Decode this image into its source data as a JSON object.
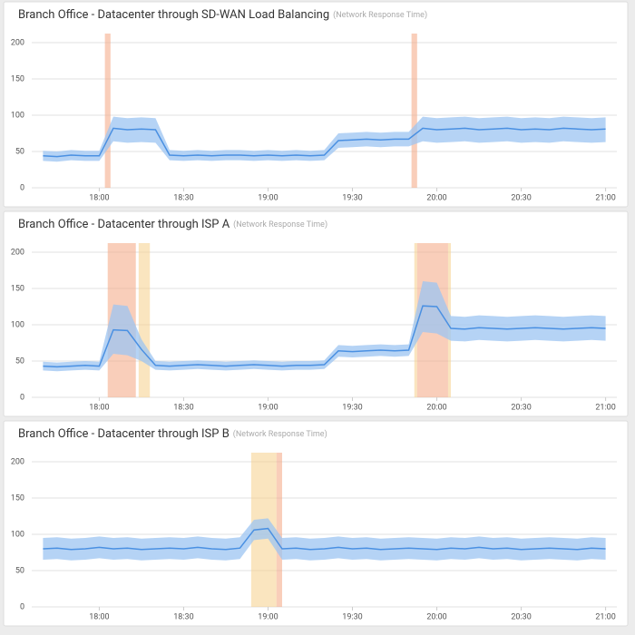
{
  "chart_data": [
    {
      "type": "line",
      "title": "Branch Office - Datacenter through SD-WAN Load Balancing",
      "subtitle": "(Network Response Time)",
      "x": [
        "17:40",
        "17:45",
        "17:50",
        "17:55",
        "18:00",
        "18:05",
        "18:10",
        "18:15",
        "18:20",
        "18:25",
        "18:30",
        "18:35",
        "18:40",
        "18:45",
        "18:50",
        "18:55",
        "19:00",
        "19:05",
        "19:10",
        "19:15",
        "19:20",
        "19:25",
        "19:30",
        "19:35",
        "19:40",
        "19:45",
        "19:50",
        "19:55",
        "20:00",
        "20:05",
        "20:10",
        "20:15",
        "20:20",
        "20:25",
        "20:30",
        "20:35",
        "20:40",
        "20:45",
        "20:50",
        "20:55",
        "21:00"
      ],
      "values": [
        44,
        43,
        45,
        44,
        44,
        82,
        80,
        81,
        80,
        45,
        44,
        45,
        44,
        45,
        45,
        44,
        45,
        44,
        45,
        44,
        45,
        65,
        66,
        67,
        66,
        67,
        67,
        82,
        80,
        81,
        82,
        80,
        81,
        82,
        80,
        81,
        80,
        82,
        81,
        80,
        81
      ],
      "band_low": [
        37,
        36,
        38,
        37,
        37,
        64,
        62,
        63,
        62,
        38,
        37,
        38,
        37,
        38,
        38,
        37,
        38,
        37,
        38,
        37,
        38,
        55,
        56,
        57,
        56,
        57,
        57,
        64,
        62,
        63,
        64,
        62,
        63,
        64,
        62,
        63,
        62,
        64,
        63,
        62,
        63
      ],
      "band_high": [
        51,
        50,
        52,
        51,
        51,
        98,
        96,
        97,
        96,
        52,
        51,
        52,
        51,
        52,
        52,
        51,
        52,
        51,
        52,
        51,
        52,
        75,
        76,
        77,
        76,
        77,
        77,
        98,
        96,
        97,
        98,
        96,
        97,
        98,
        96,
        97,
        96,
        98,
        97,
        96,
        97
      ],
      "color": "#4a90e2",
      "band_color": "#9cc4f2",
      "regions": [
        {
          "start": "18:02",
          "end": "18:04",
          "color": "#f4a582"
        },
        {
          "start": "19:51",
          "end": "19:53",
          "color": "#f4a582"
        }
      ],
      "xlim": [
        "17:36",
        "21:04"
      ],
      "xticks": [
        "18:00",
        "18:30",
        "19:00",
        "19:30",
        "20:00",
        "20:30",
        "21:00"
      ],
      "ylim": [
        0,
        200
      ],
      "yticks": [
        0,
        50,
        100,
        150,
        200
      ],
      "grid": true
    },
    {
      "type": "line",
      "title": "Branch Office - Datacenter through ISP A",
      "subtitle": "(Network Response Time)",
      "x": [
        "17:40",
        "17:45",
        "17:50",
        "17:55",
        "18:00",
        "18:05",
        "18:10",
        "18:15",
        "18:20",
        "18:25",
        "18:30",
        "18:35",
        "18:40",
        "18:45",
        "18:50",
        "18:55",
        "19:00",
        "19:05",
        "19:10",
        "19:15",
        "19:20",
        "19:25",
        "19:30",
        "19:35",
        "19:40",
        "19:45",
        "19:50",
        "19:55",
        "20:00",
        "20:05",
        "20:10",
        "20:15",
        "20:20",
        "20:25",
        "20:30",
        "20:35",
        "20:40",
        "20:45",
        "20:50",
        "20:55",
        "21:00"
      ],
      "values": [
        43,
        42,
        43,
        44,
        43,
        93,
        92,
        66,
        44,
        43,
        44,
        45,
        44,
        43,
        44,
        45,
        44,
        43,
        44,
        44,
        45,
        64,
        63,
        64,
        65,
        64,
        65,
        126,
        125,
        95,
        94,
        96,
        95,
        94,
        95,
        96,
        95,
        94,
        95,
        96,
        95
      ],
      "band_low": [
        37,
        36,
        37,
        38,
        37,
        60,
        58,
        50,
        38,
        37,
        38,
        39,
        38,
        37,
        38,
        39,
        38,
        37,
        38,
        38,
        39,
        56,
        55,
        56,
        57,
        56,
        57,
        90,
        88,
        78,
        77,
        79,
        78,
        77,
        78,
        79,
        78,
        77,
        78,
        79,
        78
      ],
      "band_high": [
        49,
        48,
        49,
        50,
        49,
        128,
        126,
        80,
        50,
        49,
        50,
        51,
        50,
        49,
        50,
        51,
        50,
        49,
        50,
        50,
        51,
        72,
        71,
        72,
        73,
        72,
        73,
        160,
        158,
        112,
        111,
        113,
        112,
        111,
        112,
        113,
        112,
        111,
        112,
        113,
        112
      ],
      "color": "#4a90e2",
      "band_color": "#9cc4f2",
      "regions": [
        {
          "start": "18:03",
          "end": "18:13",
          "color": "#f4a582"
        },
        {
          "start": "18:14",
          "end": "18:18",
          "color": "#f6d08a"
        },
        {
          "start": "19:52",
          "end": "19:53",
          "color": "#f6d08a"
        },
        {
          "start": "19:53",
          "end": "20:04",
          "color": "#f4a582"
        },
        {
          "start": "20:04",
          "end": "20:05",
          "color": "#f6d08a"
        }
      ],
      "xlim": [
        "17:36",
        "21:04"
      ],
      "xticks": [
        "18:00",
        "18:30",
        "19:00",
        "19:30",
        "20:00",
        "20:30",
        "21:00"
      ],
      "ylim": [
        0,
        200
      ],
      "yticks": [
        0,
        50,
        100,
        150,
        200
      ],
      "grid": true
    },
    {
      "type": "line",
      "title": "Branch Office - Datacenter through ISP B",
      "subtitle": "(Network Response Time)",
      "x": [
        "17:40",
        "17:45",
        "17:50",
        "17:55",
        "18:00",
        "18:05",
        "18:10",
        "18:15",
        "18:20",
        "18:25",
        "18:30",
        "18:35",
        "18:40",
        "18:45",
        "18:50",
        "18:55",
        "19:00",
        "19:05",
        "19:10",
        "19:15",
        "19:20",
        "19:25",
        "19:30",
        "19:35",
        "19:40",
        "19:45",
        "19:50",
        "19:55",
        "20:00",
        "20:05",
        "20:10",
        "20:15",
        "20:20",
        "20:25",
        "20:30",
        "20:35",
        "20:40",
        "20:45",
        "20:50",
        "20:55",
        "21:00"
      ],
      "values": [
        80,
        81,
        79,
        80,
        82,
        80,
        81,
        79,
        80,
        81,
        80,
        82,
        80,
        79,
        81,
        106,
        108,
        80,
        81,
        79,
        80,
        82,
        80,
        81,
        79,
        80,
        81,
        80,
        79,
        81,
        80,
        82,
        80,
        81,
        79,
        80,
        81,
        80,
        79,
        81,
        80
      ],
      "band_low": [
        65,
        66,
        64,
        65,
        67,
        65,
        66,
        64,
        65,
        66,
        65,
        67,
        65,
        64,
        66,
        92,
        94,
        65,
        66,
        64,
        65,
        67,
        65,
        66,
        64,
        65,
        66,
        65,
        64,
        66,
        65,
        67,
        65,
        66,
        64,
        65,
        66,
        65,
        64,
        66,
        65
      ],
      "band_high": [
        95,
        96,
        94,
        95,
        97,
        95,
        96,
        94,
        95,
        96,
        95,
        97,
        95,
        94,
        96,
        120,
        122,
        95,
        96,
        94,
        95,
        97,
        95,
        96,
        94,
        95,
        96,
        95,
        94,
        96,
        95,
        97,
        95,
        96,
        94,
        95,
        96,
        95,
        94,
        96,
        95
      ],
      "color": "#4a90e2",
      "band_color": "#9cc4f2",
      "regions": [
        {
          "start": "18:54",
          "end": "19:03",
          "color": "#f6d08a"
        },
        {
          "start": "19:03",
          "end": "19:05",
          "color": "#f4a582"
        }
      ],
      "xlim": [
        "17:36",
        "21:04"
      ],
      "xticks": [
        "18:00",
        "18:30",
        "19:00",
        "19:30",
        "20:00",
        "20:30",
        "21:00"
      ],
      "ylim": [
        0,
        200
      ],
      "yticks": [
        0,
        50,
        100,
        150,
        200
      ],
      "grid": true
    }
  ]
}
